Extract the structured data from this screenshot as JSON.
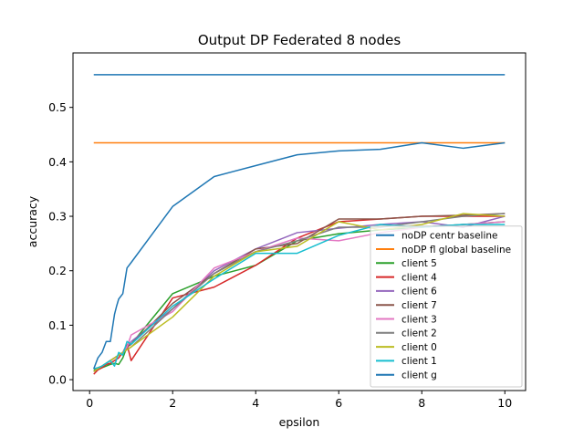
{
  "chart_data": {
    "type": "line",
    "title": "Output DP Federated 8 nodes",
    "xlabel": "epsilon",
    "ylabel": "accuracy",
    "xlim": [
      -0.4,
      10.5
    ],
    "ylim": [
      -0.02,
      0.6
    ],
    "xticks": [
      0,
      2,
      4,
      6,
      8,
      10
    ],
    "yticks": [
      0.0,
      0.1,
      0.2,
      0.3,
      0.4,
      0.5
    ],
    "xtick_labels": [
      "0",
      "2",
      "4",
      "6",
      "8",
      "10"
    ],
    "ytick_labels": [
      "0.0",
      "0.1",
      "0.2",
      "0.3",
      "0.4",
      "0.5"
    ],
    "legend_position": "lower-right",
    "series": [
      {
        "name": "noDP centr baseline",
        "color": "#1f77b4",
        "x": [
          0.1,
          10
        ],
        "y": [
          0.56,
          0.56
        ]
      },
      {
        "name": "noDP fl global baseline",
        "color": "#ff7f0e",
        "x": [
          0.1,
          10
        ],
        "y": [
          0.435,
          0.435
        ]
      },
      {
        "name": "client 5",
        "color": "#2ca02c",
        "x": [
          0.1,
          0.2,
          0.3,
          0.4,
          0.5,
          0.6,
          0.7,
          0.8,
          0.9,
          1,
          2,
          3,
          4,
          5,
          6,
          7,
          8,
          9,
          10
        ],
        "y": [
          0.018,
          0.02,
          0.022,
          0.025,
          0.028,
          0.03,
          0.028,
          0.04,
          0.06,
          0.065,
          0.158,
          0.19,
          0.21,
          0.255,
          0.268,
          0.275,
          0.28,
          0.285,
          0.29
        ]
      },
      {
        "name": "client 4",
        "color": "#d62728",
        "x": [
          0.1,
          0.2,
          0.3,
          0.4,
          0.5,
          0.6,
          0.7,
          0.8,
          0.9,
          1,
          2,
          3,
          4,
          5,
          6,
          7,
          8,
          9,
          10
        ],
        "y": [
          0.01,
          0.018,
          0.022,
          0.028,
          0.03,
          0.035,
          0.04,
          0.05,
          0.065,
          0.035,
          0.15,
          0.17,
          0.21,
          0.26,
          0.29,
          0.295,
          0.3,
          0.3,
          0.3
        ]
      },
      {
        "name": "client 6",
        "color": "#9467bd",
        "x": [
          0.1,
          0.2,
          0.3,
          0.4,
          0.5,
          0.6,
          0.7,
          0.8,
          0.9,
          1,
          2,
          3,
          4,
          5,
          6,
          7,
          8,
          9,
          10
        ],
        "y": [
          0.015,
          0.02,
          0.025,
          0.03,
          0.035,
          0.04,
          0.045,
          0.05,
          0.06,
          0.07,
          0.13,
          0.2,
          0.24,
          0.27,
          0.278,
          0.285,
          0.29,
          0.28,
          0.3
        ]
      },
      {
        "name": "client 7",
        "color": "#8c564b",
        "x": [
          0.1,
          0.2,
          0.3,
          0.4,
          0.5,
          0.6,
          0.7,
          0.8,
          0.9,
          1,
          2,
          3,
          4,
          5,
          6,
          7,
          8,
          9,
          10
        ],
        "y": [
          0.015,
          0.02,
          0.025,
          0.03,
          0.035,
          0.04,
          0.045,
          0.05,
          0.06,
          0.065,
          0.14,
          0.195,
          0.24,
          0.25,
          0.295,
          0.295,
          0.3,
          0.302,
          0.305
        ]
      },
      {
        "name": "client 3",
        "color": "#e377c2",
        "x": [
          0.1,
          0.2,
          0.3,
          0.4,
          0.5,
          0.6,
          0.7,
          0.8,
          0.9,
          1,
          2,
          3,
          4,
          5,
          6,
          7,
          8,
          9,
          10
        ],
        "y": [
          0.02,
          0.022,
          0.025,
          0.03,
          0.035,
          0.04,
          0.045,
          0.05,
          0.06,
          0.082,
          0.125,
          0.205,
          0.235,
          0.26,
          0.255,
          0.27,
          0.28,
          0.285,
          0.29
        ]
      },
      {
        "name": "client 2",
        "color": "#7f7f7f",
        "x": [
          0.1,
          0.2,
          0.3,
          0.4,
          0.5,
          0.6,
          0.7,
          0.8,
          0.9,
          1,
          2,
          3,
          4,
          5,
          6,
          7,
          8,
          9,
          10
        ],
        "y": [
          0.015,
          0.02,
          0.025,
          0.03,
          0.035,
          0.04,
          0.045,
          0.05,
          0.055,
          0.06,
          0.13,
          0.195,
          0.235,
          0.255,
          0.28,
          0.28,
          0.29,
          0.3,
          0.305
        ]
      },
      {
        "name": "client 0",
        "color": "#bcbd22",
        "x": [
          0.1,
          0.2,
          0.3,
          0.4,
          0.5,
          0.6,
          0.7,
          0.8,
          0.9,
          1,
          2,
          3,
          4,
          5,
          6,
          7,
          8,
          9,
          10
        ],
        "y": [
          0.015,
          0.02,
          0.025,
          0.03,
          0.035,
          0.04,
          0.045,
          0.05,
          0.055,
          0.06,
          0.115,
          0.19,
          0.235,
          0.245,
          0.29,
          0.275,
          0.285,
          0.305,
          0.3
        ]
      },
      {
        "name": "client 1",
        "color": "#17becf",
        "x": [
          0.1,
          0.2,
          0.3,
          0.4,
          0.5,
          0.6,
          0.7,
          0.8,
          0.9,
          1,
          2,
          3,
          4,
          5,
          6,
          7,
          8,
          9,
          10
        ],
        "y": [
          0.02,
          0.022,
          0.025,
          0.03,
          0.035,
          0.025,
          0.05,
          0.045,
          0.07,
          0.065,
          0.135,
          0.185,
          0.232,
          0.232,
          0.265,
          0.285,
          0.28,
          0.285,
          0.285
        ]
      },
      {
        "name": "client g",
        "color": "#1f77b4",
        "x": [
          0.1,
          0.2,
          0.3,
          0.4,
          0.5,
          0.6,
          0.65,
          0.7,
          0.8,
          0.9,
          1,
          2,
          3,
          4,
          5,
          6,
          7,
          8,
          9,
          10
        ],
        "y": [
          0.02,
          0.04,
          0.05,
          0.07,
          0.07,
          0.12,
          0.135,
          0.148,
          0.158,
          0.205,
          0.215,
          0.318,
          0.373,
          0.393,
          0.413,
          0.42,
          0.423,
          0.435,
          0.425,
          0.435
        ]
      }
    ]
  }
}
